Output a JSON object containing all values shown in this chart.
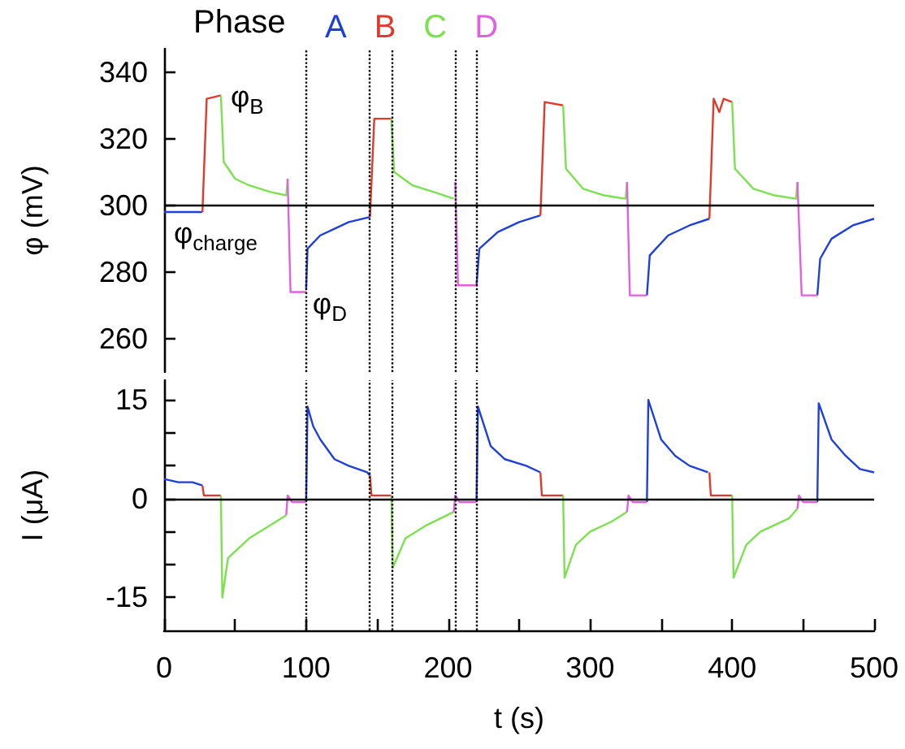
{
  "chart_data": [
    {
      "type": "line",
      "ylabel": "φ (mV)",
      "legend_title": "Phase",
      "legend": "top",
      "tick_labels": "y",
      "xlim": [
        0,
        500
      ],
      "ylim": [
        250,
        347
      ],
      "yticks": [
        260,
        280,
        300,
        320,
        340
      ],
      "annotations": [
        {
          "text": "φ$_{B}$",
          "x": 40,
          "y": 333
        },
        {
          "text": "φ$_{charge}$",
          "x": 0,
          "y": 298
        },
        {
          "text": "φ$_{D}$",
          "x": 100,
          "y": 274
        }
      ],
      "ref_lines": [
        {
          "axis": "x",
          "value": 100,
          "line_style": "dotted",
          "color": "#000000"
        },
        {
          "axis": "x",
          "value": 145,
          "line_style": "dotted",
          "color": "#000000"
        },
        {
          "axis": "x",
          "value": 160,
          "line_style": "dotted",
          "color": "#000000"
        },
        {
          "axis": "x",
          "value": 205,
          "line_style": "dotted",
          "color": "#000000"
        },
        {
          "axis": "x",
          "value": 220,
          "line_style": "dotted",
          "color": "#000000"
        },
        {
          "axis": "y",
          "value": 300,
          "line_style": "solid",
          "color": "#000000"
        }
      ],
      "series": [
        {
          "name": "A",
          "color": "#1f3fd8",
          "x": [
            0,
            27,
            50,
            100,
            101,
            110,
            120,
            130,
            145,
            180,
            220,
            222,
            235,
            250,
            265,
            300,
            340,
            342,
            355,
            370,
            384,
            420,
            460,
            462,
            470,
            485,
            500
          ],
          "values": [
            298,
            298,
            null,
            275,
            287,
            291,
            293,
            295,
            296.5,
            null,
            276,
            287,
            292,
            295,
            297,
            null,
            273,
            285,
            291,
            294,
            296,
            null,
            273,
            284,
            290,
            294,
            296
          ]
        },
        {
          "name": "B",
          "color": "#e03a2a",
          "x": [
            27,
            30,
            40,
            80,
            145,
            148,
            160,
            200,
            265,
            268,
            281,
            320,
            384,
            387,
            391,
            394,
            400
          ],
          "values": [
            298,
            332,
            333,
            null,
            296.5,
            326,
            326,
            null,
            297,
            331,
            330,
            null,
            296,
            332,
            328,
            332,
            331
          ]
        },
        {
          "name": "C",
          "color": "#7de050",
          "x": [
            40,
            42,
            50,
            60,
            75,
            86,
            87,
            120,
            160,
            162,
            175,
            190,
            204,
            240,
            281,
            283,
            295,
            310,
            325,
            326,
            360,
            400,
            402,
            415,
            430,
            445,
            446
          ],
          "values": [
            333,
            313,
            308,
            306,
            304,
            303,
            308,
            null,
            326,
            310,
            306,
            304,
            302,
            null,
            330,
            311,
            305,
            303,
            302,
            307,
            null,
            331,
            311,
            305,
            303,
            302,
            307
          ]
        },
        {
          "name": "D",
          "color": "#e060e0",
          "x": [
            87,
            89,
            100,
            150,
            205,
            207,
            220,
            270,
            326,
            328,
            340,
            400,
            446,
            449,
            460
          ],
          "values": [
            308,
            274,
            274,
            null,
            307,
            276,
            276,
            null,
            307,
            273,
            273,
            null,
            307,
            273,
            273
          ]
        }
      ]
    },
    {
      "type": "line",
      "ylabel": "I (μA)",
      "xlabel": "t (s)",
      "xlim": [
        0,
        500
      ],
      "xticks": [
        0,
        {
          "value": 50,
          "label": null
        },
        100,
        {
          "value": 150,
          "label": null
        },
        200,
        {
          "value": 250,
          "label": null
        },
        300,
        {
          "value": 350,
          "label": null
        },
        400,
        {
          "value": 450,
          "label": null
        },
        500
      ],
      "ylim": [
        -20,
        18
      ],
      "yticks": [
        -15,
        {
          "value": -10,
          "label": null
        },
        {
          "value": -5,
          "label": null
        },
        0,
        {
          "value": 5,
          "label": null
        },
        {
          "value": 10,
          "label": null
        },
        15
      ],
      "ref_lines": [
        {
          "axis": "x",
          "value": 100,
          "line_style": "dotted",
          "color": "#000000"
        },
        {
          "axis": "x",
          "value": 145,
          "line_style": "dotted",
          "color": "#000000"
        },
        {
          "axis": "x",
          "value": 160,
          "line_style": "dotted",
          "color": "#000000"
        },
        {
          "axis": "x",
          "value": 205,
          "line_style": "dotted",
          "color": "#000000"
        },
        {
          "axis": "x",
          "value": 220,
          "line_style": "dotted",
          "color": "#000000"
        },
        {
          "axis": "y",
          "value": 0,
          "line_style": "solid",
          "color": "#000000"
        }
      ],
      "series": [
        {
          "color": "#1f3fd8",
          "x": [
            0,
            10,
            20,
            27,
            50,
            100,
            101,
            105,
            110,
            120,
            130,
            143,
            145,
            180,
            220,
            221,
            230,
            240,
            255,
            265,
            300,
            340,
            341,
            350,
            360,
            370,
            383,
            420,
            460,
            461,
            470,
            480,
            490,
            500
          ],
          "values": [
            3,
            2.5,
            2.5,
            2,
            null,
            -0.5,
            14,
            11,
            9,
            6,
            5,
            4,
            3.5,
            null,
            -0.5,
            14,
            8,
            6,
            5,
            4,
            null,
            -0.5,
            15,
            9,
            6.5,
            5,
            4,
            null,
            -0.5,
            14.5,
            9,
            6.5,
            4.5,
            4
          ]
        },
        {
          "color": "#e03a2a",
          "x": [
            27,
            28,
            40,
            80,
            145,
            146,
            160,
            200,
            265,
            266,
            281,
            320,
            384,
            385,
            400
          ],
          "values": [
            2,
            0.5,
            0.5,
            null,
            3.5,
            0.5,
            0.5,
            null,
            4,
            0.5,
            0.5,
            null,
            4,
            0.5,
            0.5
          ]
        },
        {
          "color": "#7de050",
          "x": [
            40,
            41,
            45,
            60,
            75,
            86,
            120,
            160,
            161,
            170,
            185,
            204,
            240,
            281,
            282,
            290,
            300,
            315,
            326,
            360,
            400,
            401,
            410,
            420,
            440,
            446
          ],
          "values": [
            0.5,
            -15,
            -9,
            -6,
            -4,
            -2.5,
            null,
            0.5,
            -10.5,
            -6,
            -4,
            -2,
            null,
            0.5,
            -12,
            -7,
            -5,
            -3.5,
            -2,
            null,
            0.5,
            -12,
            -7,
            -5,
            -3,
            -1.5
          ]
        },
        {
          "color": "#e060e0",
          "x": [
            86,
            87,
            90,
            100,
            150,
            204,
            205,
            208,
            220,
            270,
            326,
            327,
            330,
            340,
            400,
            446,
            447,
            450,
            460
          ],
          "values": [
            -2.5,
            0.5,
            -0.5,
            -0.5,
            null,
            -2,
            0.5,
            -0.5,
            -0.5,
            null,
            -2,
            0.5,
            -0.5,
            -0.5,
            null,
            -1.5,
            0.5,
            -0.5,
            -0.5
          ]
        }
      ]
    }
  ]
}
